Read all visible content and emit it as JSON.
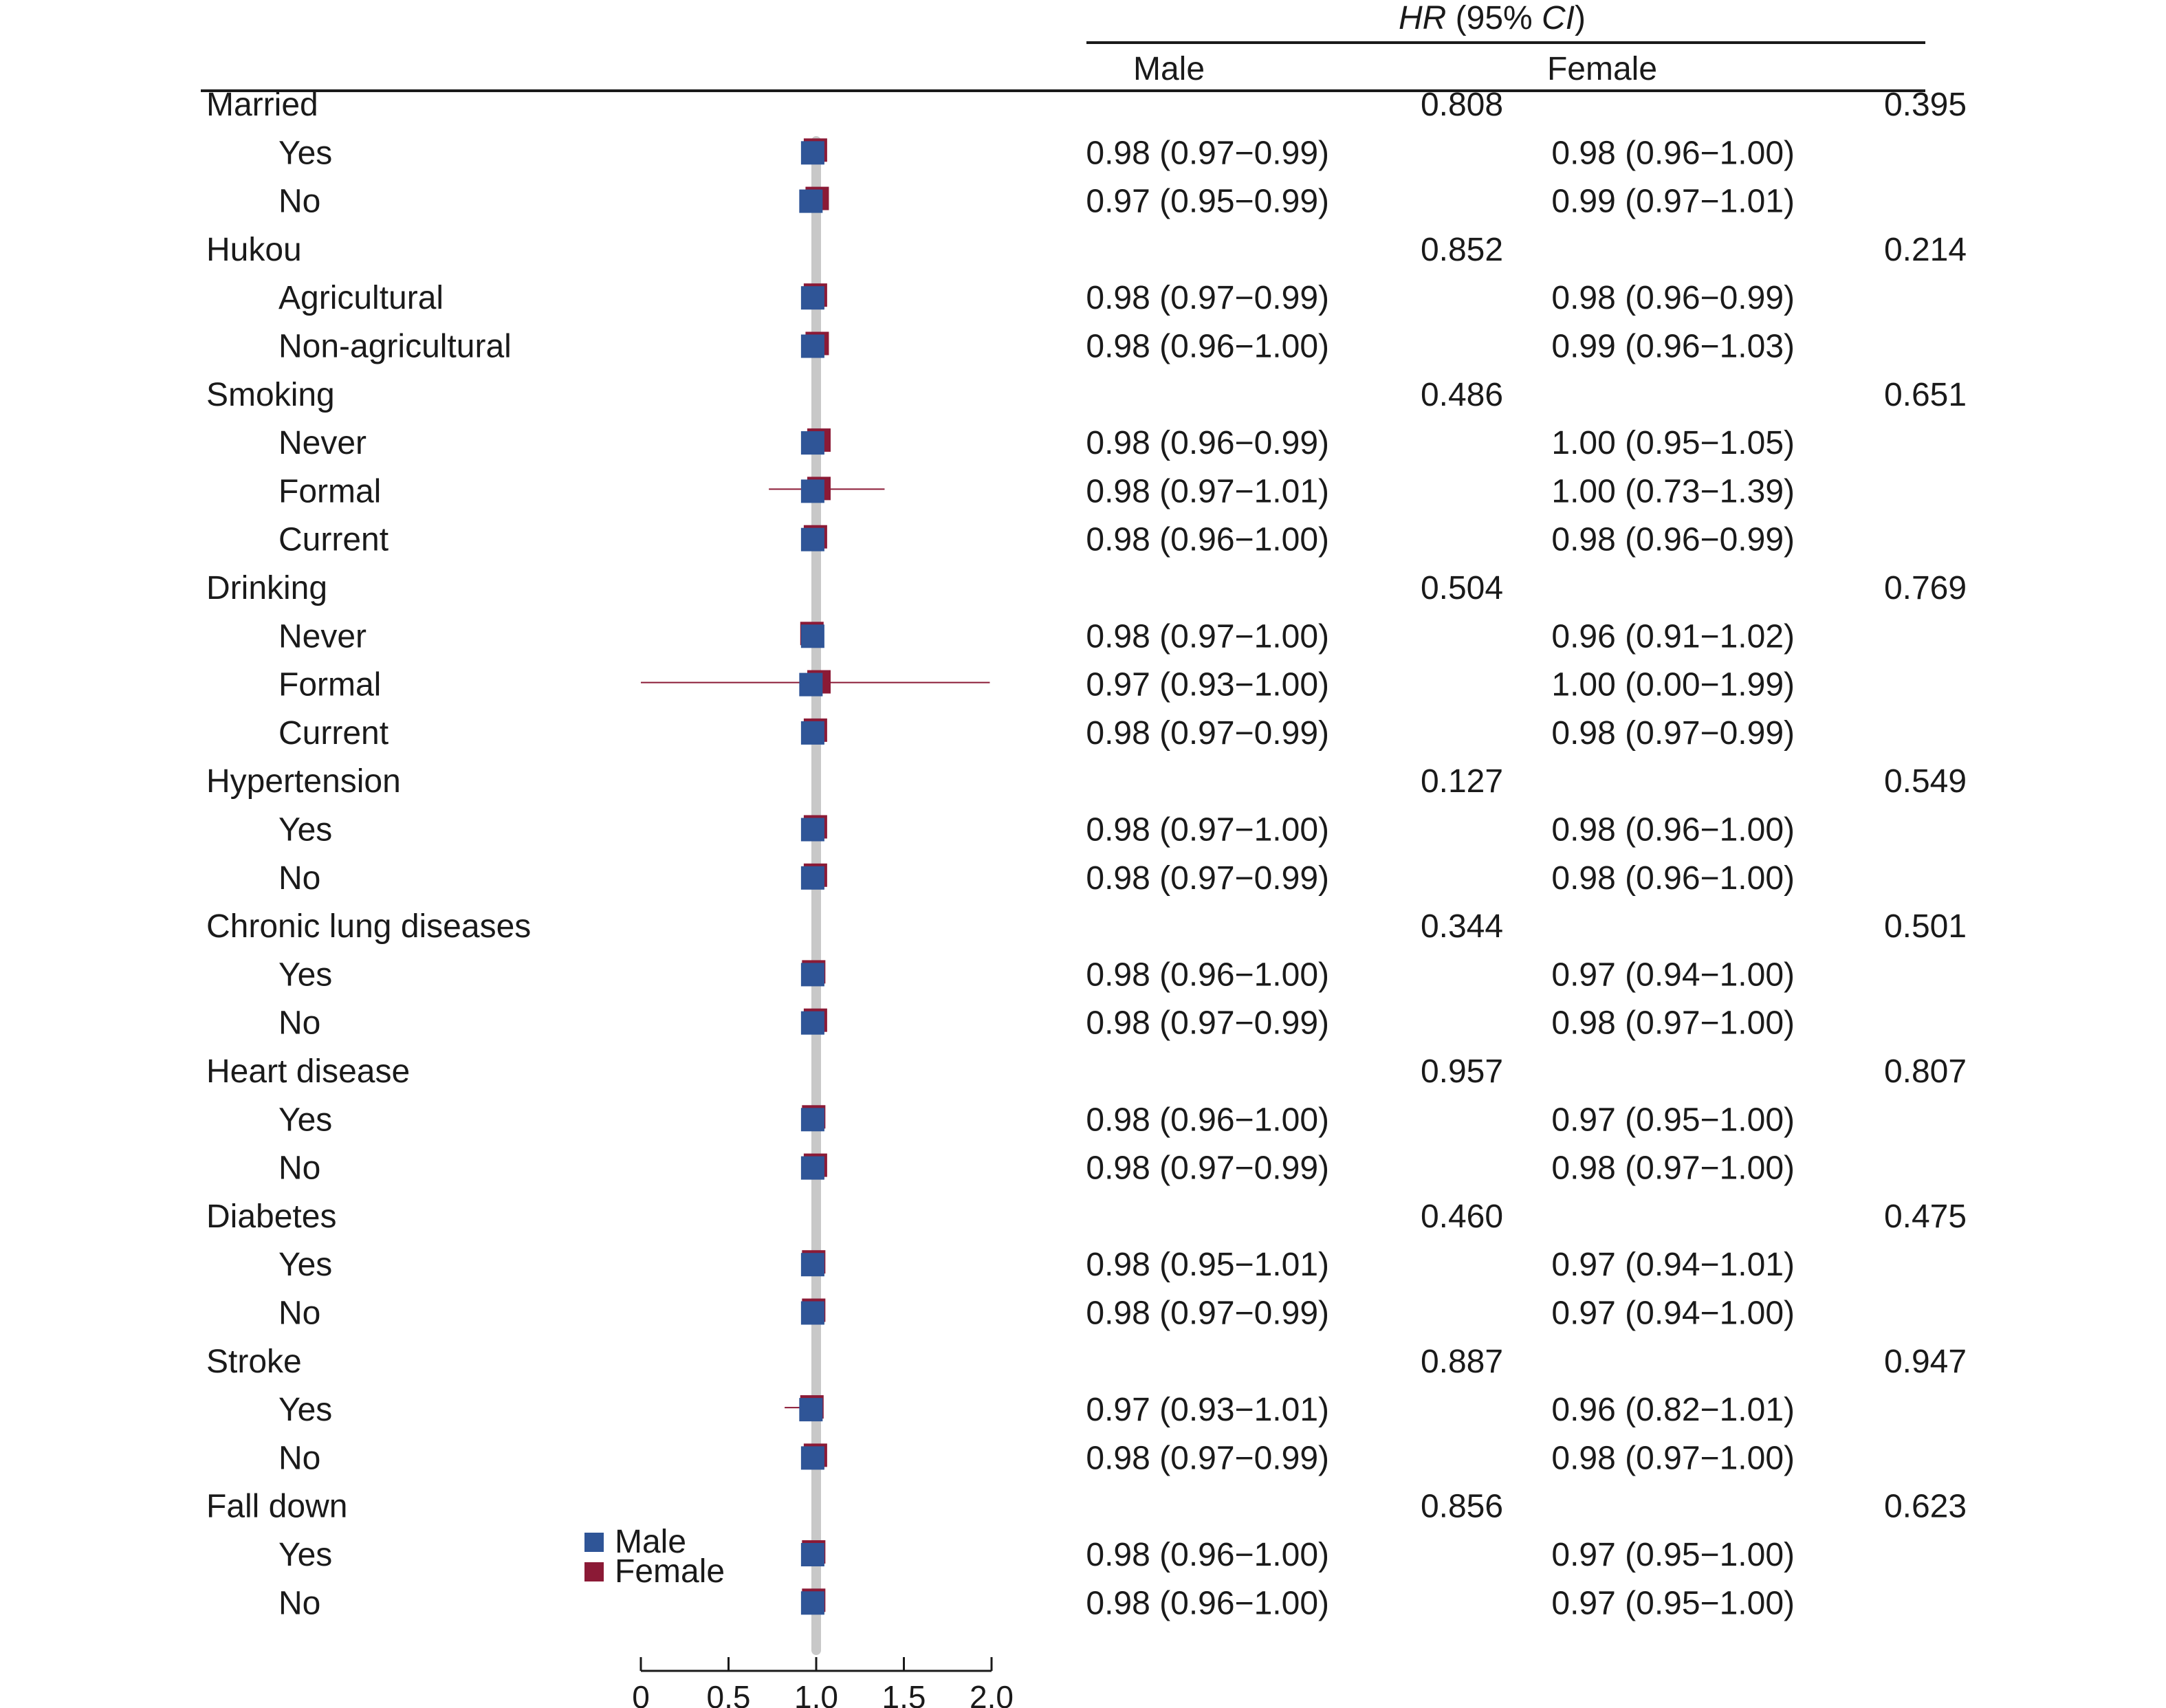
{
  "chart_data": {
    "type": "forest",
    "header": {
      "title_italic_1": "HR",
      "title_plain": " (95% ",
      "title_italic_2": "CI",
      "title_close": ")",
      "col_male": "Male",
      "col_female": "Female"
    },
    "legend": [
      {
        "name": "Male",
        "color": "#2f5597"
      },
      {
        "name": "Female",
        "color": "#8b1a36"
      }
    ],
    "x_axis": {
      "ticks": [
        0,
        0.5,
        1.0,
        1.5,
        2.0
      ],
      "tick_labels": [
        "0",
        "0.5",
        "1.0",
        "1.5",
        "2.0"
      ],
      "range": [
        0,
        2.0
      ],
      "reference_line": 1.0
    },
    "colors": {
      "male": "#2f5597",
      "female": "#8b1a36",
      "reference": "#c8c8c8"
    },
    "rows": [
      {
        "label": "Married",
        "group": true,
        "p_male": "0.808",
        "p_female": "0.395"
      },
      {
        "label": "Yes",
        "male_text": "0.98 (0.97−0.99)",
        "female_text": "0.98 (0.96−1.00)",
        "male": [
          0.98,
          0.97,
          0.99
        ],
        "female": [
          0.98,
          0.96,
          1.0
        ]
      },
      {
        "label": "No",
        "male_text": "0.97 (0.95−0.99)",
        "female_text": "0.99 (0.97−1.01)",
        "male": [
          0.97,
          0.95,
          0.99
        ],
        "female": [
          0.99,
          0.97,
          1.01
        ]
      },
      {
        "label": "Hukou",
        "group": true,
        "p_male": "0.852",
        "p_female": "0.214"
      },
      {
        "label": "Agricultural",
        "male_text": "0.98 (0.97−0.99)",
        "female_text": "0.98 (0.96−0.99)",
        "male": [
          0.98,
          0.97,
          0.99
        ],
        "female": [
          0.98,
          0.96,
          0.99
        ]
      },
      {
        "label": "Non-agricultural",
        "male_text": "0.98 (0.96−1.00)",
        "female_text": "0.99 (0.96−1.03)",
        "male": [
          0.98,
          0.96,
          1.0
        ],
        "female": [
          0.99,
          0.96,
          1.03
        ]
      },
      {
        "label": "Smoking",
        "group": true,
        "p_male": "0.486",
        "p_female": "0.651"
      },
      {
        "label": "Never",
        "male_text": "0.98 (0.96−0.99)",
        "female_text": "1.00 (0.95−1.05)",
        "male": [
          0.98,
          0.96,
          0.99
        ],
        "female": [
          1.0,
          0.95,
          1.05
        ]
      },
      {
        "label": "Formal",
        "male_text": "0.98 (0.97−1.01)",
        "female_text": "1.00 (0.73−1.39)",
        "male": [
          0.98,
          0.97,
          1.01
        ],
        "female": [
          1.0,
          0.73,
          1.39
        ]
      },
      {
        "label": "Current",
        "male_text": "0.98 (0.96−1.00)",
        "female_text": "0.98 (0.96−0.99)",
        "male": [
          0.98,
          0.96,
          1.0
        ],
        "female": [
          0.98,
          0.96,
          0.99
        ]
      },
      {
        "label": "Drinking",
        "group": true,
        "p_male": "0.504",
        "p_female": "0.769"
      },
      {
        "label": "Never",
        "male_text": "0.98 (0.97−1.00)",
        "female_text": "0.96 (0.91−1.02)",
        "male": [
          0.98,
          0.97,
          1.0
        ],
        "female": [
          0.96,
          0.91,
          1.02
        ]
      },
      {
        "label": "Formal",
        "male_text": "0.97 (0.93−1.00)",
        "female_text": "1.00 (0.00−1.99)",
        "male": [
          0.97,
          0.93,
          1.0
        ],
        "female": [
          1.0,
          0.0,
          1.99
        ]
      },
      {
        "label": "Current",
        "male_text": "0.98 (0.97−0.99)",
        "female_text": "0.98 (0.97−0.99)",
        "male": [
          0.98,
          0.97,
          0.99
        ],
        "female": [
          0.98,
          0.97,
          0.99
        ]
      },
      {
        "label": "Hypertension",
        "group": true,
        "p_male": "0.127",
        "p_female": "0.549"
      },
      {
        "label": "Yes",
        "male_text": "0.98 (0.97−1.00)",
        "female_text": "0.98 (0.96−1.00)",
        "male": [
          0.98,
          0.97,
          1.0
        ],
        "female": [
          0.98,
          0.96,
          1.0
        ]
      },
      {
        "label": "No",
        "male_text": "0.98 (0.97−0.99)",
        "female_text": "0.98 (0.96−1.00)",
        "male": [
          0.98,
          0.97,
          0.99
        ],
        "female": [
          0.98,
          0.96,
          1.0
        ]
      },
      {
        "label": "Chronic lung diseases",
        "group": true,
        "p_male": "0.344",
        "p_female": "0.501"
      },
      {
        "label": "Yes",
        "male_text": "0.98 (0.96−1.00)",
        "female_text": "0.97 (0.94−1.00)",
        "male": [
          0.98,
          0.96,
          1.0
        ],
        "female": [
          0.97,
          0.94,
          1.0
        ]
      },
      {
        "label": "No",
        "male_text": "0.98 (0.97−0.99)",
        "female_text": "0.98 (0.97−1.00)",
        "male": [
          0.98,
          0.97,
          0.99
        ],
        "female": [
          0.98,
          0.97,
          1.0
        ]
      },
      {
        "label": "Heart disease",
        "group": true,
        "p_male": "0.957",
        "p_female": "0.807"
      },
      {
        "label": "Yes",
        "male_text": "0.98 (0.96−1.00)",
        "female_text": "0.97 (0.95−1.00)",
        "male": [
          0.98,
          0.96,
          1.0
        ],
        "female": [
          0.97,
          0.95,
          1.0
        ]
      },
      {
        "label": "No",
        "male_text": "0.98 (0.97−0.99)",
        "female_text": "0.98 (0.97−1.00)",
        "male": [
          0.98,
          0.97,
          0.99
        ],
        "female": [
          0.98,
          0.97,
          1.0
        ]
      },
      {
        "label": "Diabetes",
        "group": true,
        "p_male": "0.460",
        "p_female": "0.475"
      },
      {
        "label": "Yes",
        "male_text": "0.98 (0.95−1.01)",
        "female_text": "0.97 (0.94−1.01)",
        "male": [
          0.98,
          0.95,
          1.01
        ],
        "female": [
          0.97,
          0.94,
          1.01
        ]
      },
      {
        "label": "No",
        "male_text": "0.98 (0.97−0.99)",
        "female_text": "0.97 (0.94−1.00)",
        "male": [
          0.98,
          0.97,
          0.99
        ],
        "female": [
          0.97,
          0.94,
          1.0
        ]
      },
      {
        "label": "Stroke",
        "group": true,
        "p_male": "0.887",
        "p_female": "0.947"
      },
      {
        "label": "Yes",
        "male_text": "0.97 (0.93−1.01)",
        "female_text": "0.96 (0.82−1.01)",
        "male": [
          0.97,
          0.93,
          1.01
        ],
        "female": [
          0.96,
          0.82,
          1.01
        ]
      },
      {
        "label": "No",
        "male_text": "0.98 (0.97−0.99)",
        "female_text": "0.98 (0.97−1.00)",
        "male": [
          0.98,
          0.97,
          0.99
        ],
        "female": [
          0.98,
          0.97,
          1.0
        ]
      },
      {
        "label": "Fall down",
        "group": true,
        "p_male": "0.856",
        "p_female": "0.623"
      },
      {
        "label": "Yes",
        "male_text": "0.98 (0.96−1.00)",
        "female_text": "0.97 (0.95−1.00)",
        "male": [
          0.98,
          0.96,
          1.0
        ],
        "female": [
          0.97,
          0.95,
          1.0
        ]
      },
      {
        "label": "No",
        "male_text": "0.98 (0.96−1.00)",
        "female_text": "0.97 (0.95−1.00)",
        "male": [
          0.98,
          0.96,
          1.0
        ],
        "female": [
          0.97,
          0.95,
          1.0
        ]
      }
    ]
  }
}
